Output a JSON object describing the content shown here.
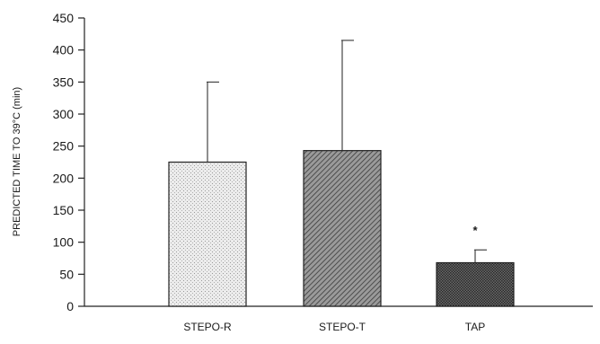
{
  "chart_data": {
    "type": "bar",
    "title": "",
    "xlabel": "",
    "ylabel": "PREDICTED TIME TO 39°C (min)",
    "ylim": [
      0,
      450
    ],
    "yticks": [
      0,
      50,
      100,
      150,
      200,
      250,
      300,
      350,
      400,
      450
    ],
    "yticks_text": [
      "0",
      "50",
      "100",
      "150",
      "200",
      "250",
      "300",
      "350",
      "400",
      "450"
    ],
    "categories": [
      "STEPO-R",
      "STEPO-T",
      "TAP"
    ],
    "values": [
      225,
      243,
      68
    ],
    "error_upper": [
      350,
      415,
      88
    ],
    "annotations": [
      {
        "category": "TAP",
        "text": "*"
      }
    ],
    "grid": false,
    "legend": "none",
    "colors": {
      "STEPO-R": "#e3e3e3",
      "STEPO-T": "#8a8a8a",
      "TAP": "#505050",
      "axis": "#222222"
    }
  }
}
